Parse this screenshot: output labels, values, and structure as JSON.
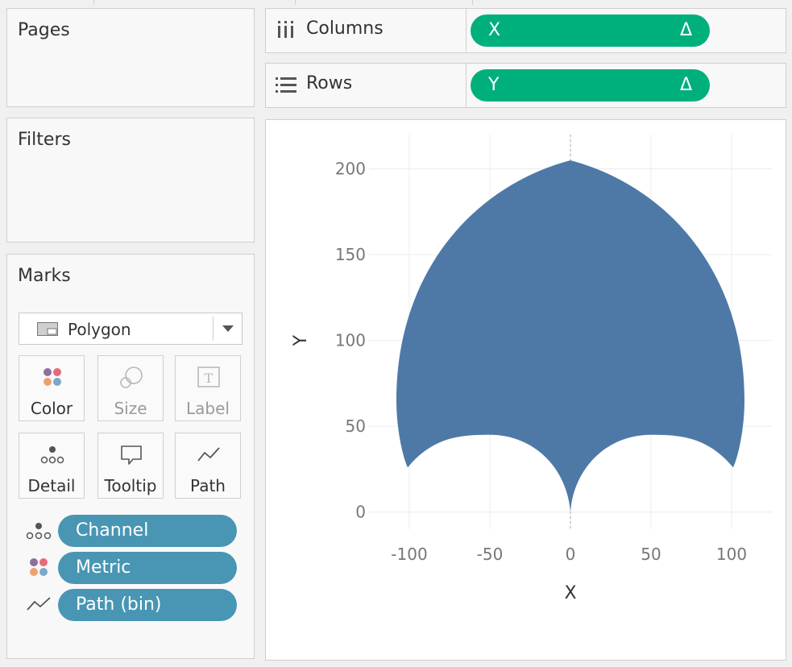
{
  "pages": {
    "title": "Pages"
  },
  "filters": {
    "title": "Filters"
  },
  "marks": {
    "title": "Marks",
    "mark_type": "Polygon",
    "buttons": {
      "color": "Color",
      "size": "Size",
      "label": "Label",
      "detail": "Detail",
      "tooltip": "Tooltip",
      "path": "Path"
    },
    "fields": [
      {
        "name": "Channel",
        "encoding": "detail"
      },
      {
        "name": "Metric",
        "encoding": "color"
      },
      {
        "name": "Path (bin)",
        "encoding": "path"
      }
    ]
  },
  "shelves": {
    "columns": {
      "label": "Columns",
      "pill": "X",
      "pill_symbol": "Δ"
    },
    "rows": {
      "label": "Rows",
      "pill": "Y",
      "pill_symbol": "Δ"
    }
  },
  "colors": {
    "mark_fill": "#4e79a7",
    "measure_pill": "#00b07c",
    "dimension_pill": "#4896b4"
  },
  "chart_data": {
    "type": "polygon",
    "xlabel": "X",
    "ylabel": "Y",
    "xlim": [
      -125,
      125
    ],
    "ylim": [
      -10,
      220
    ],
    "x_ticks": [
      -100,
      -50,
      0,
      50,
      100
    ],
    "y_ticks": [
      0,
      50,
      100,
      150,
      200
    ],
    "grid": true,
    "zero_line": "dashed vertical at x = 0",
    "outline": {
      "top": [
        0,
        205
      ],
      "left_extreme": [
        -108,
        65
      ],
      "right_extreme": [
        108,
        65
      ],
      "left_corner": [
        -101,
        26
      ],
      "right_corner": [
        101,
        26
      ],
      "bottom_cusp": [
        0,
        0
      ],
      "left_notch_peak": [
        -50,
        45
      ],
      "right_notch_peak": [
        50,
        45
      ]
    }
  }
}
